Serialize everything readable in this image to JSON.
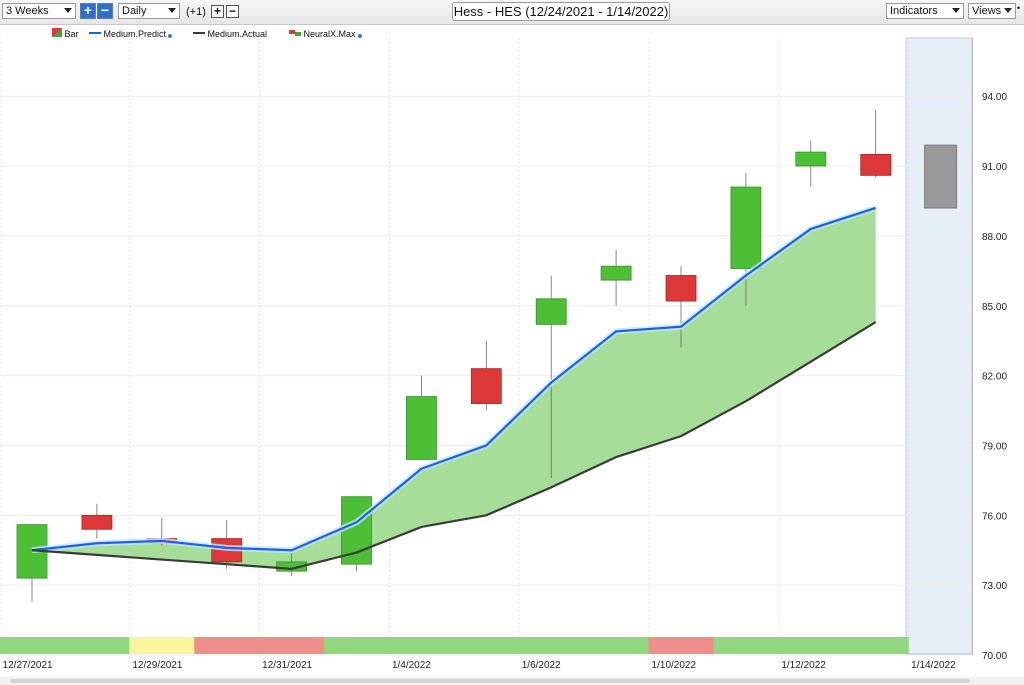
{
  "toolbar": {
    "range": "3 Weeks",
    "interval": "Daily",
    "offset": "(+1)",
    "title": "Hess - HES (12/24/2021 - 1/14/2022)",
    "indicators": "Indicators",
    "views": "Views"
  },
  "legend": [
    {
      "label": "Bar",
      "icon": "bar-icon"
    },
    {
      "label": "Medium.Predict",
      "color": "#1f5fe0",
      "icon": "line-icon"
    },
    {
      "label": "Medium.Actual",
      "color": "#3a3a3a",
      "icon": "line-icon"
    },
    {
      "label": "NeuralX.Max",
      "icon": "neuralx-icon"
    }
  ],
  "chart_data": {
    "type": "candlestick",
    "xlabels": [
      "12/27/2021",
      "12/29/2021",
      "12/31/2021",
      "1/4/2022",
      "1/6/2022",
      "1/10/2022",
      "1/12/2022",
      "1/14/2022"
    ],
    "yticks": [
      "70.00",
      "73.00",
      "76.00",
      "79.00",
      "82.00",
      "85.00",
      "88.00",
      "91.00",
      "94.00"
    ],
    "ylim": [
      70,
      96.5
    ],
    "candles": [
      {
        "open": 73.3,
        "close": 75.6,
        "high": 75.6,
        "low": 72.3,
        "dir": "up"
      },
      {
        "open": 76.0,
        "close": 75.4,
        "high": 76.5,
        "low": 75.0,
        "dir": "down"
      },
      {
        "open": 75.0,
        "close": 74.8,
        "high": 75.9,
        "low": 74.7,
        "dir": "down"
      },
      {
        "open": 75.0,
        "close": 74.0,
        "high": 75.8,
        "low": 73.7,
        "dir": "down"
      },
      {
        "open": 73.6,
        "close": 74.0,
        "high": 74.4,
        "low": 73.4,
        "dir": "up"
      },
      {
        "open": 73.9,
        "close": 76.8,
        "high": 76.8,
        "low": 73.6,
        "dir": "up"
      },
      {
        "open": 78.4,
        "close": 81.1,
        "high": 82.0,
        "low": 78.4,
        "dir": "up"
      },
      {
        "open": 82.3,
        "close": 80.8,
        "high": 83.5,
        "low": 80.5,
        "dir": "down"
      },
      {
        "open": 84.2,
        "close": 85.3,
        "high": 86.3,
        "low": 77.6,
        "dir": "up"
      },
      {
        "open": 86.1,
        "close": 86.7,
        "high": 87.4,
        "low": 85.0,
        "dir": "up"
      },
      {
        "open": 86.3,
        "close": 85.2,
        "high": 86.7,
        "low": 83.2,
        "dir": "down"
      },
      {
        "open": 86.6,
        "close": 90.1,
        "high": 90.7,
        "low": 85.0,
        "dir": "up"
      },
      {
        "open": 91.0,
        "close": 91.6,
        "high": 92.1,
        "low": 90.1,
        "dir": "up"
      },
      {
        "open": 91.5,
        "close": 90.6,
        "high": 93.4,
        "low": 90.5,
        "dir": "down"
      }
    ],
    "forecast_bar": {
      "low": 89.2,
      "high": 91.9
    },
    "series": [
      {
        "name": "Medium.Predict",
        "values": [
          74.5,
          74.8,
          74.9,
          74.6,
          74.5,
          75.7,
          78.0,
          79.0,
          81.7,
          83.9,
          84.1,
          86.3,
          88.3,
          89.2
        ]
      },
      {
        "name": "Medium.Actual",
        "values": [
          74.5,
          74.3,
          74.1,
          73.9,
          73.7,
          74.4,
          75.5,
          76.0,
          77.2,
          78.5,
          79.4,
          80.9,
          82.6,
          84.3
        ]
      }
    ],
    "signal_strip": [
      "green",
      "green",
      "yellow",
      "red",
      "red",
      "green",
      "green",
      "green",
      "green",
      "green",
      "red",
      "green",
      "green",
      "green"
    ]
  }
}
